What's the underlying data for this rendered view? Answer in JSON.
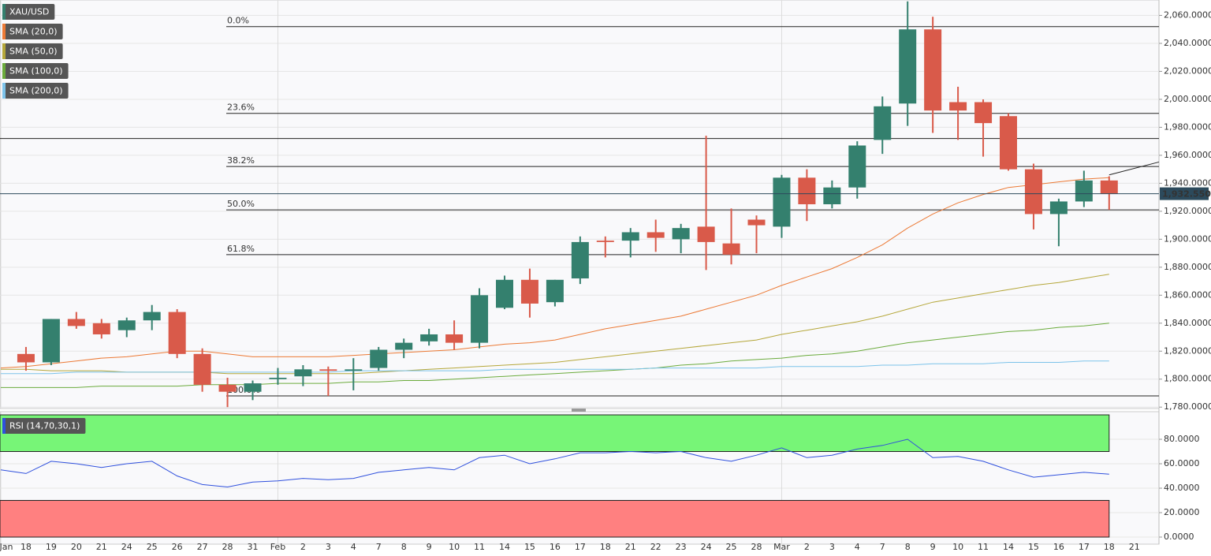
{
  "chart_data": [
    {
      "type": "candlestick",
      "name": "XAU/USD",
      "categories": [
        "Jan",
        "18",
        "19",
        "20",
        "21",
        "24",
        "25",
        "26",
        "27",
        "28",
        "31",
        "Feb",
        "2",
        "3",
        "4",
        "7",
        "8",
        "9",
        "10",
        "11",
        "14",
        "15",
        "16",
        "17",
        "18",
        "21",
        "22",
        "23",
        "24",
        "25",
        "28",
        "Mar",
        "2",
        "3",
        "4",
        "7",
        "8",
        "9",
        "10",
        "11",
        "14",
        "15",
        "16",
        "17",
        "18",
        "21"
      ],
      "open": [
        null,
        1818,
        1812,
        1843,
        1840,
        1835,
        1842,
        1848,
        1818,
        1796,
        1791,
        1800,
        1802,
        1807,
        1806,
        1808,
        1821,
        1827,
        1832,
        1826,
        1851,
        1871,
        1855,
        1872,
        1899,
        1899,
        1905,
        1900,
        1909,
        1897,
        1914,
        1909,
        1944,
        1925,
        1937,
        1971,
        1997,
        2050,
        1998,
        1998,
        1988,
        1950,
        1918,
        1927,
        1942,
        null
      ],
      "high": [
        null,
        1823,
        1843,
        1848,
        1843,
        1844,
        1853,
        1850,
        1822,
        1801,
        1799,
        1808,
        1810,
        1809,
        1815,
        1823,
        1829,
        1836,
        1842,
        1865,
        1874,
        1879,
        1871,
        1902,
        1902,
        1908,
        1914,
        1911,
        1974,
        1922,
        1917,
        1946,
        1950,
        1942,
        1970,
        2002,
        2070,
        2059,
        2009,
        2000,
        1990,
        1954,
        1929,
        1949,
        1945,
        null
      ],
      "low": [
        null,
        1806,
        1810,
        1836,
        1829,
        1830,
        1835,
        1815,
        1791,
        1780,
        1785,
        1796,
        1795,
        1788,
        1792,
        1806,
        1815,
        1824,
        1821,
        1822,
        1850,
        1844,
        1852,
        1868,
        1887,
        1887,
        1891,
        1890,
        1878,
        1882,
        1890,
        1901,
        1913,
        1922,
        1929,
        1961,
        1981,
        1976,
        1971,
        1959,
        1949,
        1907,
        1895,
        1923,
        1921,
        null
      ],
      "close": [
        null,
        1812,
        1843,
        1838,
        1832,
        1842,
        1848,
        1818,
        1796,
        1791,
        1797,
        1801,
        1807,
        1806,
        1807,
        1821,
        1826,
        1832,
        1826,
        1860,
        1871,
        1854,
        1871,
        1898,
        1898,
        1905,
        1901,
        1908,
        1898,
        1889,
        1910,
        1944,
        1925,
        1937,
        1967,
        1995,
        2050,
        1992,
        1992,
        1983,
        1950,
        1918,
        1927,
        1942,
        1932.55,
        null
      ],
      "up_color": "#34806e",
      "down_color": "#d95a4a",
      "series": [
        {
          "name": "SMA (20,0)",
          "color": "#ec7a36",
          "values": [
            1808,
            1809,
            1811,
            1813,
            1815,
            1816,
            1818,
            1820,
            1820,
            1818,
            1816,
            1816,
            1816,
            1816,
            1817,
            1818,
            1819,
            1820,
            1821,
            1823,
            1825,
            1826,
            1828,
            1832,
            1836,
            1839,
            1842,
            1845,
            1850,
            1855,
            1860,
            1867,
            1873,
            1879,
            1887,
            1896,
            1908,
            1918,
            1926,
            1932,
            1937,
            1939,
            1941,
            1943,
            1944,
            null
          ]
        },
        {
          "name": "SMA (50,0)",
          "color": "#b5a73a",
          "values": [
            1807,
            1807,
            1806,
            1806,
            1806,
            1805,
            1805,
            1805,
            1805,
            1804,
            1804,
            1804,
            1804,
            1804,
            1804,
            1805,
            1806,
            1807,
            1808,
            1809,
            1810,
            1811,
            1812,
            1814,
            1816,
            1818,
            1820,
            1822,
            1824,
            1826,
            1828,
            1832,
            1835,
            1838,
            1841,
            1845,
            1850,
            1855,
            1858,
            1861,
            1864,
            1867,
            1869,
            1872,
            1875,
            null
          ]
        },
        {
          "name": "SMA (100,0)",
          "color": "#6bab3c",
          "values": [
            1794,
            1794,
            1794,
            1794,
            1795,
            1795,
            1795,
            1795,
            1796,
            1796,
            1796,
            1797,
            1797,
            1797,
            1798,
            1798,
            1799,
            1799,
            1800,
            1801,
            1802,
            1803,
            1804,
            1805,
            1806,
            1807,
            1808,
            1810,
            1811,
            1813,
            1814,
            1815,
            1817,
            1818,
            1820,
            1823,
            1826,
            1828,
            1830,
            1832,
            1834,
            1835,
            1837,
            1838,
            1840,
            null
          ]
        },
        {
          "name": "SMA (200,0)",
          "color": "#7cc3ea",
          "values": [
            1804,
            1804,
            1804,
            1805,
            1805,
            1805,
            1805,
            1805,
            1805,
            1805,
            1805,
            1805,
            1805,
            1805,
            1806,
            1806,
            1806,
            1806,
            1806,
            1806,
            1807,
            1807,
            1807,
            1807,
            1807,
            1807,
            1808,
            1808,
            1808,
            1808,
            1808,
            1809,
            1809,
            1809,
            1809,
            1810,
            1810,
            1811,
            1811,
            1811,
            1812,
            1812,
            1812,
            1813,
            1813,
            null
          ]
        }
      ],
      "trendline": [
        null,
        null,
        null,
        null,
        null,
        null,
        null,
        null,
        null,
        null,
        1788,
        null,
        null,
        null,
        null,
        null,
        null,
        null,
        null,
        null,
        null,
        null,
        null,
        null,
        null,
        null,
        null,
        null,
        null,
        null,
        null,
        null,
        null,
        null,
        null,
        null,
        null,
        null,
        null,
        null,
        null,
        null,
        null,
        null,
        1946,
        null
      ],
      "fib_levels": [
        {
          "value": 2052,
          "label": "0.0%"
        },
        {
          "value": 1990,
          "label": "23.6%"
        },
        {
          "value": 1952,
          "label": "38.2%"
        },
        {
          "value": 1921,
          "label": "50.0%"
        },
        {
          "value": 1889,
          "label": "61.8%"
        },
        {
          "value": 1788,
          "label": "100.0%"
        }
      ],
      "horizontal_lines": [
        1972
      ],
      "last": {
        "value": 1932.55,
        "label": "1,932.5500"
      },
      "ylim": [
        1779,
        2071
      ],
      "yticks": [
        {
          "value": 1780,
          "label": "1,780.0000"
        },
        {
          "value": 1800,
          "label": "1,800.0000"
        },
        {
          "value": 1820,
          "label": "1,820.0000"
        },
        {
          "value": 1840,
          "label": "1,840.0000"
        },
        {
          "value": 1860,
          "label": "1,860.0000"
        },
        {
          "value": 1880,
          "label": "1,880.0000"
        },
        {
          "value": 1900,
          "label": "1,900.0000"
        },
        {
          "value": 1920,
          "label": "1,920.0000"
        },
        {
          "value": 1940,
          "label": "1,940.0000"
        },
        {
          "value": 1960,
          "label": "1,960.0000"
        },
        {
          "value": 1980,
          "label": "1,980.0000"
        },
        {
          "value": 2000,
          "label": "2,000.0000"
        },
        {
          "value": 2020,
          "label": "2,020.0000"
        },
        {
          "value": 2040,
          "label": "2,040.0000"
        },
        {
          "value": 2060,
          "label": "2,060.0000"
        }
      ],
      "grid": true
    },
    {
      "type": "line",
      "series": [
        {
          "name": "RSI (14,70,30,1)",
          "color": "#2f50dd",
          "values": [
            55,
            52,
            62,
            60,
            57,
            60,
            62,
            50,
            43,
            41,
            45,
            46,
            48,
            47,
            48,
            53,
            55,
            57,
            55,
            65,
            67,
            60,
            64,
            69,
            69,
            70,
            69,
            70,
            65,
            62,
            67,
            73,
            65,
            67,
            72,
            75,
            80,
            65,
            66,
            62,
            55,
            49,
            51,
            53,
            51.5,
            null
          ]
        }
      ],
      "bands": [
        {
          "from": 70,
          "to": 100,
          "color": "#77f577"
        },
        {
          "from": 0,
          "to": 30,
          "color": "#ff8080"
        }
      ],
      "ylim": [
        -5.8,
        102.6
      ],
      "yticks": [
        {
          "value": 0,
          "label": "0.0000"
        },
        {
          "value": 20,
          "label": "20.0000"
        },
        {
          "value": 40,
          "label": "40.0000"
        },
        {
          "value": 60,
          "label": "60.0000"
        },
        {
          "value": 80,
          "label": "80.0000"
        }
      ],
      "grid": true
    }
  ]
}
